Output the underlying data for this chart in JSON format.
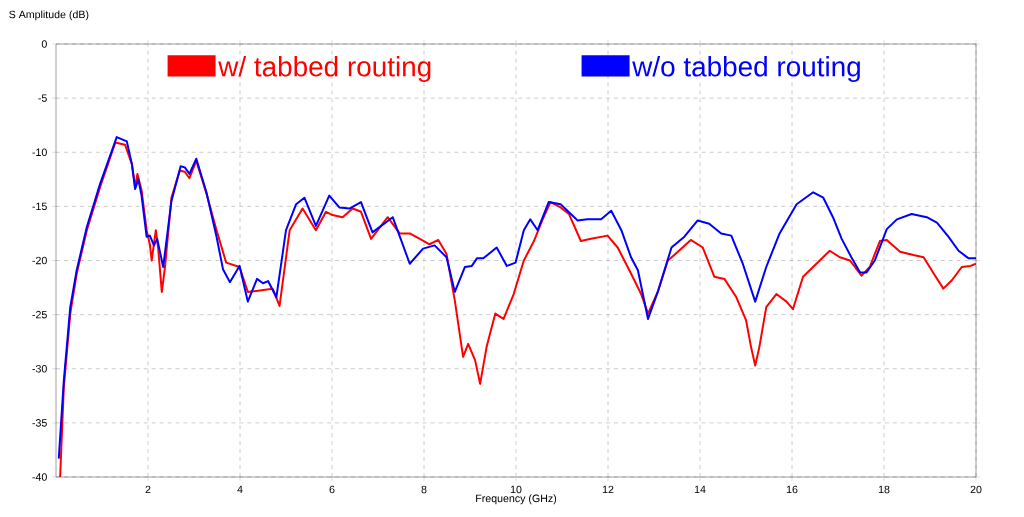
{
  "chart_data": {
    "type": "line",
    "xlabel": "Frequency (GHz)",
    "ylabel": "S Amplitude (dB)",
    "xlim": [
      0,
      20
    ],
    "ylim": [
      -40,
      0
    ],
    "xticks": [
      2,
      4,
      6,
      8,
      10,
      12,
      14,
      16,
      18,
      20
    ],
    "yticks": [
      0,
      -5,
      -10,
      -15,
      -20,
      -25,
      -30,
      -35,
      -40
    ],
    "grid": true,
    "legend": "top",
    "marker": "none",
    "line_style": "solid",
    "series": [
      {
        "name": "w/ tabbed routing",
        "color": "#ff0000",
        "x": [
          0.09,
          0.17,
          0.31,
          0.45,
          0.67,
          0.96,
          1.29,
          1.5,
          1.65,
          1.72,
          1.77,
          1.86,
          1.97,
          2.04,
          2.08,
          2.17,
          2.22,
          2.3,
          2.37,
          2.51,
          2.69,
          2.8,
          2.9,
          3.05,
          3.27,
          3.49,
          3.7,
          3.99,
          4.17,
          4.39,
          4.71,
          4.86,
          5.08,
          5.36,
          5.65,
          5.87,
          6.01,
          6.23,
          6.45,
          6.63,
          6.85,
          7.21,
          7.47,
          7.69,
          7.91,
          8.12,
          8.31,
          8.49,
          8.67,
          8.85,
          8.96,
          9.11,
          9.22,
          9.36,
          9.55,
          9.73,
          9.95,
          10.17,
          10.39,
          10.57,
          10.75,
          10.97,
          11.15,
          11.41,
          11.63,
          11.99,
          12.21,
          12.5,
          12.72,
          12.87,
          13.09,
          13.3,
          13.44,
          13.8,
          14.06,
          14.31,
          14.53,
          14.79,
          15.0,
          15.11,
          15.2,
          15.29,
          15.44,
          15.66,
          15.88,
          16.02,
          16.24,
          16.53,
          16.82,
          17.04,
          17.26,
          17.51,
          17.69,
          17.91,
          18.06,
          18.35,
          18.64,
          18.86,
          19.08,
          19.29,
          19.48,
          19.69,
          19.88,
          20.0
        ],
        "values": [
          -40,
          -31.7,
          -24.9,
          -21.2,
          -17.2,
          -13.2,
          -9.1,
          -9.3,
          -11.1,
          -13.2,
          -12.0,
          -13.5,
          -17.2,
          -18.5,
          -20.0,
          -17.2,
          -18.8,
          -22.9,
          -20.6,
          -14.2,
          -11.7,
          -11.8,
          -12.4,
          -10.8,
          -13.8,
          -17.2,
          -20.2,
          -20.6,
          -22.9,
          -22.8,
          -22.6,
          -24.2,
          -17.2,
          -15.2,
          -17.2,
          -15.5,
          -15.8,
          -16.0,
          -15.2,
          -15.5,
          -18.0,
          -16.0,
          -17.5,
          -17.5,
          -18.0,
          -18.5,
          -18.1,
          -19.4,
          -23.7,
          -28.9,
          -27.7,
          -29.2,
          -31.4,
          -28.0,
          -24.9,
          -25.4,
          -23.1,
          -20.0,
          -18.2,
          -16.3,
          -14.6,
          -15.1,
          -15.7,
          -18.2,
          -18.0,
          -17.7,
          -18.8,
          -21.2,
          -23.1,
          -24.9,
          -22.8,
          -20.0,
          -19.5,
          -18.1,
          -18.8,
          -21.5,
          -21.7,
          -23.4,
          -25.5,
          -28.0,
          -29.7,
          -28.0,
          -24.3,
          -23.1,
          -23.8,
          -24.5,
          -21.5,
          -20.3,
          -19.1,
          -19.7,
          -20.0,
          -21.4,
          -20.6,
          -18.2,
          -18.1,
          -19.2,
          -19.5,
          -19.7,
          -21.2,
          -22.6,
          -21.8,
          -20.6,
          -20.5,
          -20.3
        ]
      },
      {
        "name": "w/o tabbed routing",
        "color": "#0000ff",
        "x": [
          0.06,
          0.17,
          0.31,
          0.45,
          0.67,
          0.96,
          1.32,
          1.54,
          1.65,
          1.72,
          1.79,
          1.86,
          1.97,
          2.04,
          2.13,
          2.2,
          2.33,
          2.51,
          2.71,
          2.8,
          2.9,
          3.05,
          3.27,
          3.49,
          3.63,
          3.78,
          3.99,
          4.17,
          4.37,
          4.5,
          4.61,
          4.79,
          5.0,
          5.22,
          5.4,
          5.65,
          5.94,
          6.16,
          6.38,
          6.63,
          6.88,
          7.32,
          7.69,
          7.98,
          8.23,
          8.49,
          8.67,
          8.89,
          9.04,
          9.15,
          9.29,
          9.58,
          9.8,
          9.99,
          10.17,
          10.31,
          10.47,
          10.71,
          10.97,
          11.34,
          11.55,
          11.85,
          12.07,
          12.29,
          12.5,
          12.65,
          12.87,
          13.09,
          13.38,
          13.66,
          13.95,
          14.2,
          14.46,
          14.68,
          14.93,
          15.2,
          15.44,
          15.73,
          16.1,
          16.46,
          16.68,
          16.89,
          17.08,
          17.29,
          17.48,
          17.62,
          17.8,
          18.06,
          18.28,
          18.6,
          18.93,
          19.15,
          19.4,
          19.62,
          19.84,
          20.0
        ],
        "values": [
          -38.3,
          -31.1,
          -24.3,
          -20.9,
          -16.9,
          -12.9,
          -8.6,
          -9.0,
          -11.1,
          -13.4,
          -12.5,
          -14.0,
          -17.8,
          -17.7,
          -18.6,
          -18.0,
          -20.6,
          -14.5,
          -11.3,
          -11.4,
          -12.0,
          -10.6,
          -13.7,
          -17.8,
          -20.8,
          -22.0,
          -20.5,
          -23.8,
          -21.7,
          -22.1,
          -21.9,
          -23.4,
          -17.2,
          -14.8,
          -14.2,
          -16.8,
          -14.0,
          -15.1,
          -15.2,
          -14.6,
          -17.4,
          -16.0,
          -20.3,
          -18.9,
          -18.6,
          -19.7,
          -22.9,
          -20.6,
          -20.5,
          -19.8,
          -19.8,
          -18.8,
          -20.5,
          -20.2,
          -17.2,
          -16.2,
          -17.2,
          -14.6,
          -14.8,
          -16.3,
          -16.2,
          -16.2,
          -15.4,
          -17.2,
          -19.7,
          -20.9,
          -25.4,
          -22.8,
          -18.8,
          -17.8,
          -16.3,
          -16.6,
          -17.5,
          -17.7,
          -20.3,
          -23.8,
          -20.6,
          -17.5,
          -14.8,
          -13.7,
          -14.2,
          -16.0,
          -18.0,
          -19.7,
          -21.1,
          -21.1,
          -20.0,
          -17.1,
          -16.2,
          -15.7,
          -16.0,
          -16.5,
          -17.8,
          -19.1,
          -19.8,
          -19.8
        ]
      }
    ]
  }
}
